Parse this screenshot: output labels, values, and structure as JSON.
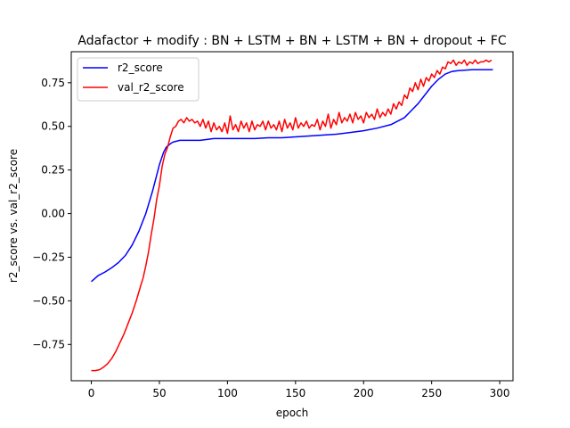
{
  "chart_data": {
    "type": "line",
    "title": "Adafactor + modify : BN + LSTM + BN + LSTM + BN + dropout + FC",
    "xlabel": "epoch",
    "ylabel": "r2_score vs. val_r2_score",
    "xlim": [
      -14.75,
      309.75
    ],
    "ylim": [
      -0.958,
      0.928
    ],
    "xticks": [
      0,
      50,
      100,
      150,
      200,
      250,
      300
    ],
    "yticks": [
      -0.75,
      -0.5,
      -0.25,
      0.0,
      0.25,
      0.5,
      0.75
    ],
    "xtick_labels": [
      "0",
      "50",
      "100",
      "150",
      "200",
      "250",
      "300"
    ],
    "ytick_labels": [
      "−0.75",
      "−0.50",
      "−0.25",
      "0.00",
      "0.25",
      "0.50",
      "0.75"
    ],
    "grid": false,
    "legend_position": "upper-left",
    "series": [
      {
        "name": "r2_score",
        "color": "#0000ff",
        "x": [
          0,
          5,
          10,
          15,
          20,
          25,
          30,
          35,
          40,
          45,
          50,
          53,
          55,
          58,
          60,
          65,
          70,
          80,
          90,
          100,
          110,
          120,
          130,
          140,
          150,
          160,
          170,
          180,
          190,
          200,
          210,
          220,
          230,
          235,
          240,
          245,
          250,
          255,
          260,
          265,
          270,
          280,
          290,
          295
        ],
        "y": [
          -0.39,
          -0.355,
          -0.335,
          -0.31,
          -0.28,
          -0.24,
          -0.18,
          -0.1,
          0.0,
          0.13,
          0.28,
          0.35,
          0.38,
          0.4,
          0.41,
          0.42,
          0.42,
          0.42,
          0.43,
          0.43,
          0.43,
          0.43,
          0.435,
          0.435,
          0.44,
          0.445,
          0.45,
          0.455,
          0.465,
          0.475,
          0.49,
          0.51,
          0.55,
          0.59,
          0.63,
          0.68,
          0.73,
          0.77,
          0.8,
          0.815,
          0.82,
          0.825,
          0.825,
          0.825
        ]
      },
      {
        "name": "val_r2_score",
        "color": "#ff0000",
        "x": [
          0,
          3,
          6,
          9,
          12,
          15,
          18,
          21,
          24,
          27,
          30,
          33,
          36,
          38,
          40,
          42,
          44,
          46,
          48,
          50,
          52,
          54,
          56,
          58,
          60,
          62,
          64,
          66,
          68,
          70,
          72,
          74,
          76,
          78,
          80,
          82,
          84,
          86,
          88,
          90,
          92,
          94,
          96,
          98,
          100,
          102,
          104,
          106,
          108,
          110,
          112,
          114,
          116,
          118,
          120,
          122,
          124,
          126,
          128,
          130,
          132,
          134,
          136,
          138,
          140,
          142,
          144,
          146,
          148,
          150,
          152,
          154,
          156,
          158,
          160,
          162,
          164,
          166,
          168,
          170,
          172,
          174,
          176,
          178,
          180,
          182,
          184,
          186,
          188,
          190,
          192,
          194,
          196,
          198,
          200,
          202,
          204,
          206,
          208,
          210,
          212,
          214,
          216,
          218,
          220,
          222,
          224,
          226,
          228,
          230,
          232,
          234,
          236,
          238,
          240,
          242,
          244,
          246,
          248,
          250,
          252,
          254,
          256,
          258,
          260,
          262,
          264,
          266,
          268,
          270,
          272,
          274,
          276,
          278,
          280,
          282,
          284,
          286,
          288,
          290,
          292,
          294
        ],
        "y": [
          -0.9,
          -0.9,
          -0.895,
          -0.88,
          -0.86,
          -0.83,
          -0.79,
          -0.74,
          -0.69,
          -0.63,
          -0.57,
          -0.5,
          -0.42,
          -0.37,
          -0.3,
          -0.22,
          -0.12,
          -0.03,
          0.08,
          0.16,
          0.27,
          0.34,
          0.38,
          0.44,
          0.49,
          0.5,
          0.53,
          0.54,
          0.52,
          0.55,
          0.53,
          0.54,
          0.52,
          0.53,
          0.5,
          0.54,
          0.49,
          0.53,
          0.47,
          0.52,
          0.48,
          0.5,
          0.47,
          0.52,
          0.46,
          0.56,
          0.48,
          0.51,
          0.47,
          0.53,
          0.49,
          0.52,
          0.47,
          0.53,
          0.48,
          0.51,
          0.5,
          0.53,
          0.48,
          0.53,
          0.49,
          0.51,
          0.48,
          0.53,
          0.47,
          0.54,
          0.49,
          0.52,
          0.48,
          0.55,
          0.49,
          0.52,
          0.5,
          0.53,
          0.49,
          0.51,
          0.5,
          0.54,
          0.48,
          0.53,
          0.5,
          0.57,
          0.49,
          0.54,
          0.51,
          0.58,
          0.52,
          0.55,
          0.53,
          0.57,
          0.52,
          0.58,
          0.54,
          0.56,
          0.52,
          0.58,
          0.55,
          0.57,
          0.54,
          0.6,
          0.55,
          0.58,
          0.56,
          0.6,
          0.57,
          0.63,
          0.6,
          0.64,
          0.62,
          0.68,
          0.66,
          0.72,
          0.7,
          0.75,
          0.71,
          0.77,
          0.73,
          0.78,
          0.76,
          0.8,
          0.78,
          0.82,
          0.8,
          0.84,
          0.83,
          0.87,
          0.86,
          0.88,
          0.85,
          0.87,
          0.86,
          0.88,
          0.85,
          0.87,
          0.86,
          0.88,
          0.86,
          0.87,
          0.87,
          0.88,
          0.87,
          0.88
        ]
      }
    ]
  }
}
